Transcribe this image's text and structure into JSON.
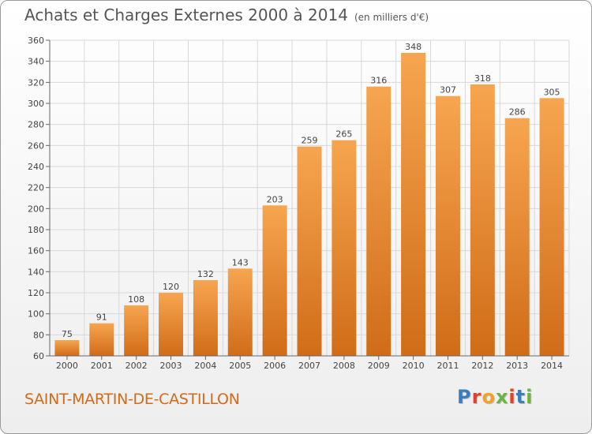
{
  "header": {
    "title": "Achats et Charges Externes 2000 à 2014",
    "unit": "(en milliers d'€)"
  },
  "footer": {
    "town": "SAINT-MARTIN-DE-CASTILLON",
    "logo_letters": [
      "P",
      "r",
      "o",
      "x",
      "i",
      "t",
      "i"
    ],
    "logo_colors": [
      "#3a7ebf",
      "#e2422a",
      "#f2a325",
      "#6bb443",
      "#e2422a",
      "#3a7ebf",
      "#6bb443"
    ]
  },
  "chart_data": {
    "type": "bar",
    "title": "Achats et Charges Externes 2000 à 2014",
    "subtitle": "(en milliers d'€)",
    "categories": [
      "2000",
      "2001",
      "2002",
      "2003",
      "2004",
      "2005",
      "2006",
      "2007",
      "2008",
      "2009",
      "2010",
      "2011",
      "2012",
      "2013",
      "2014"
    ],
    "values": [
      75,
      91,
      108,
      120,
      132,
      143,
      203,
      259,
      265,
      316,
      348,
      307,
      318,
      286,
      305
    ],
    "ylim": [
      60,
      360
    ],
    "yticks": [
      60,
      80,
      100,
      120,
      140,
      160,
      180,
      200,
      220,
      240,
      260,
      280,
      300,
      320,
      340,
      360
    ],
    "grid": true,
    "bar_color_top": "#f7a550",
    "bar_color_bottom": "#d06c18"
  }
}
